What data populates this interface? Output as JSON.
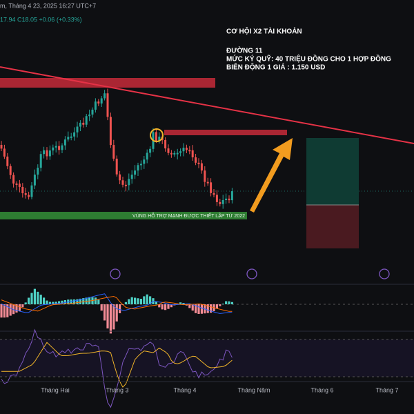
{
  "header": {
    "info": "m, Tháng 4 23, 2025 16:27 UTC+7",
    "quote": "17.94  C18.05  +0.06 (+0.33%)"
  },
  "notes": {
    "headline": "CƠ HỘI X2 TÀI KHOẢN",
    "line1": "ĐƯỜNG 11",
    "line2": "MỨC KÝ QUỸ: 40 TRIỆU ĐỒNG CHO 1 HỢP ĐỒNG",
    "line3": "BIÊN ĐỘNG 1 GIÁ : 1.150 USD"
  },
  "support_zone": "VÙNG HỖ TRỢ MẠNH ĐƯỢC THIẾT LẬP TỪ 2022",
  "time_axis": [
    "Tháng Hai",
    "Tháng 3",
    "Tháng 4",
    "Tháng Năm",
    "Tháng 6",
    "Tháng 7"
  ]
}
